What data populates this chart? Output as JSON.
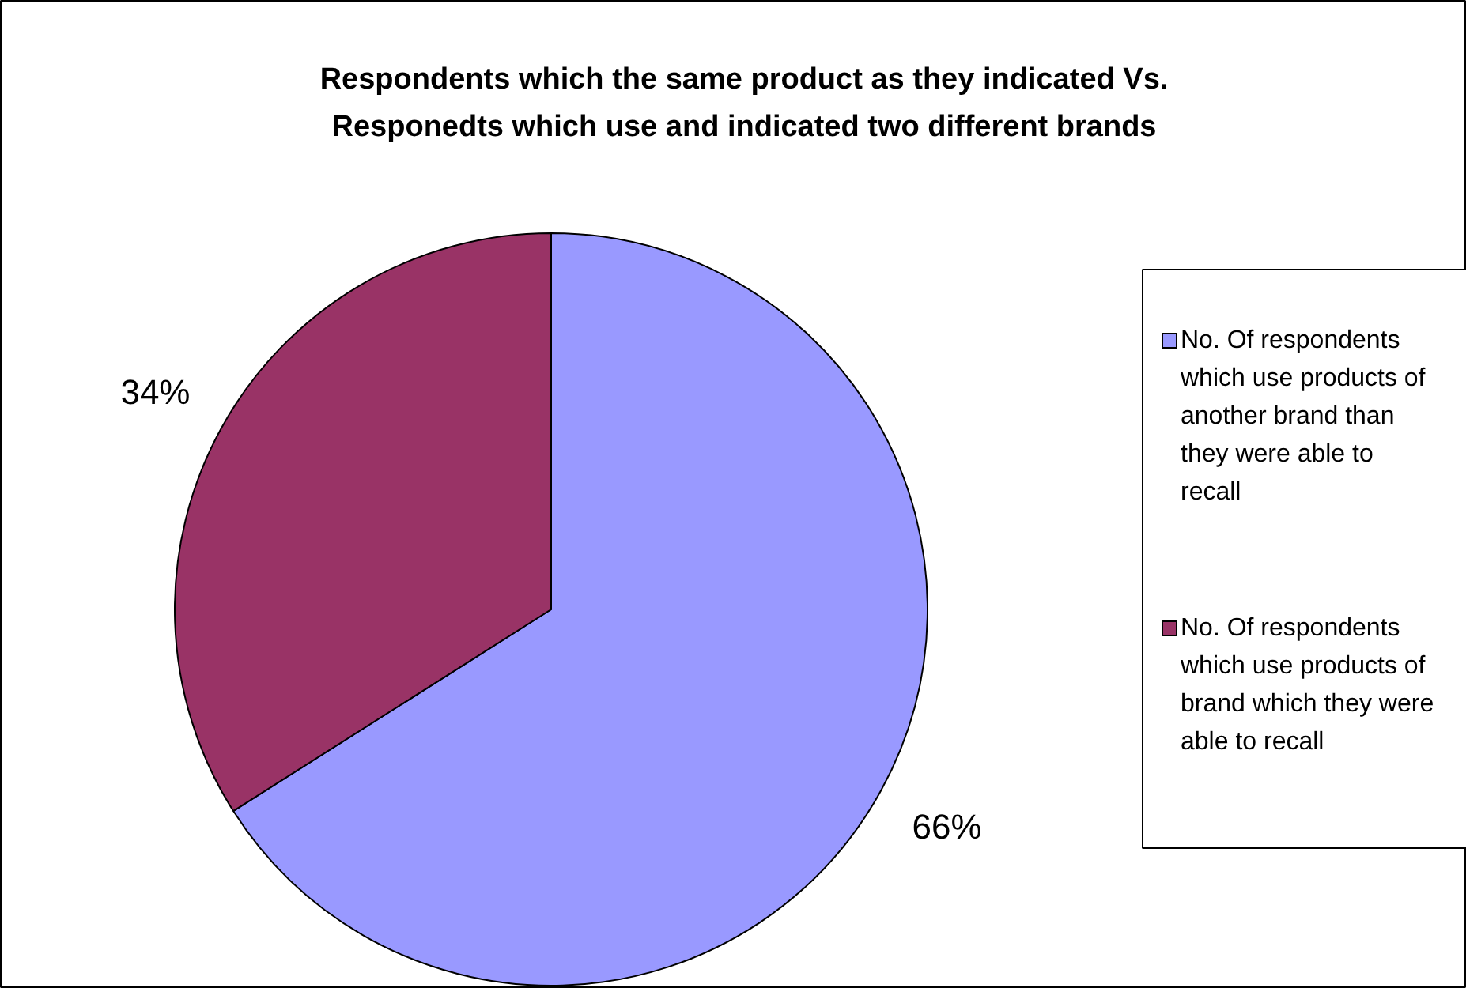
{
  "chart_data": {
    "type": "pie",
    "title": "Respondents which the same product as they indicated Vs.\nResponedts which use and indicated two different brands",
    "categories": [
      "No. Of respondents which use products of another brand than they were able to recall",
      "No. Of respondents which use products of brand which they were able to recall"
    ],
    "values": [
      66,
      34
    ],
    "value_labels": [
      "66%",
      "34%"
    ],
    "colors": [
      "#9999ff",
      "#993366"
    ],
    "legend": "right"
  }
}
